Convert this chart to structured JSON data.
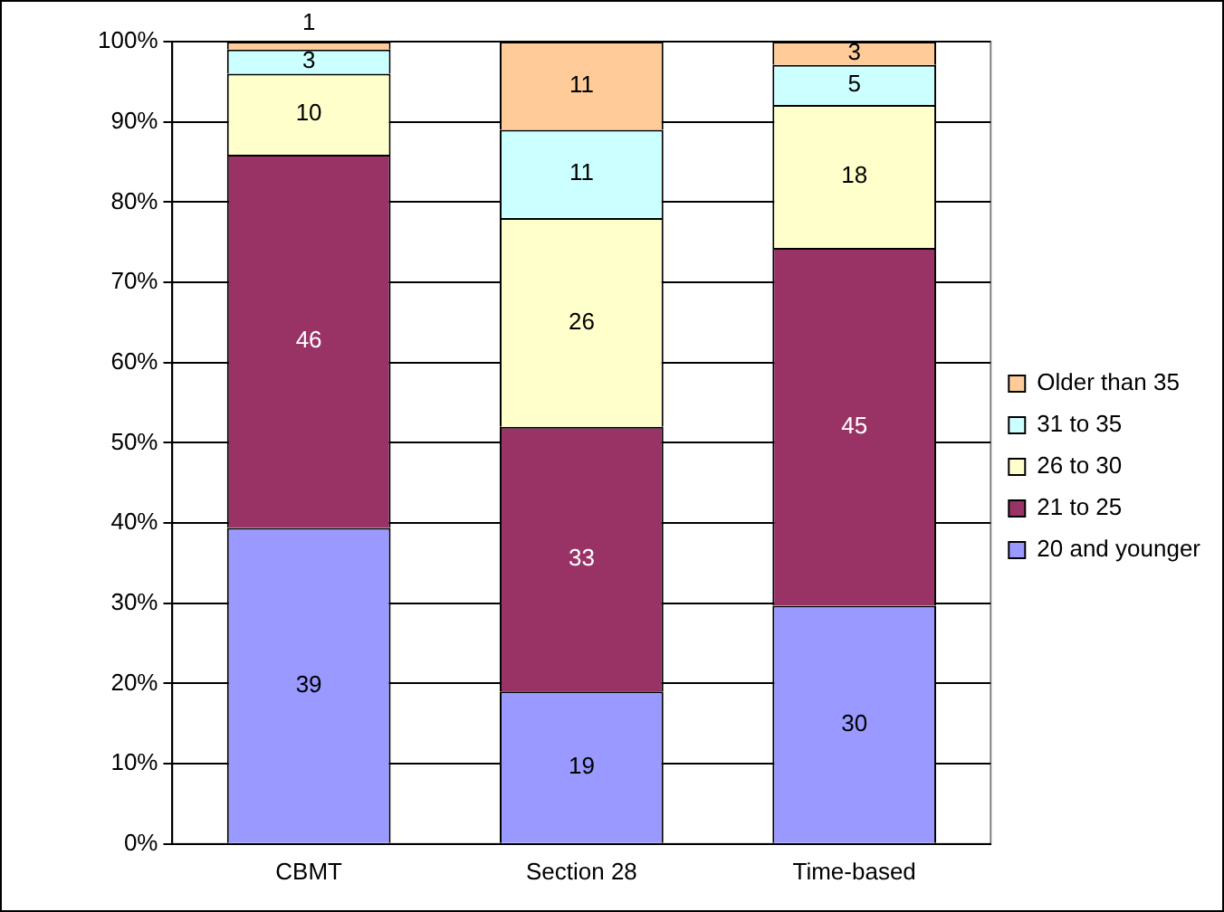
{
  "chart_data": {
    "type": "bar",
    "stacked": true,
    "categories": [
      "CBMT",
      "Section 28",
      "Time-based"
    ],
    "series": [
      {
        "name": "20 and younger",
        "color": "#9999ff",
        "values": [
          39.4,
          19,
          29.7
        ],
        "value_labels": [
          "39",
          "19",
          "30"
        ]
      },
      {
        "name": "21 to 25",
        "color": "#993366",
        "values": [
          46.5,
          33,
          44.6
        ],
        "value_labels": [
          "46",
          "33",
          "45"
        ]
      },
      {
        "name": "26 to 30",
        "color": "#ffffcc",
        "values": [
          10.1,
          26,
          17.8
        ],
        "value_labels": [
          "10",
          "26",
          "18"
        ]
      },
      {
        "name": "31 to 35",
        "color": "#ccffff",
        "values": [
          3,
          11,
          5
        ],
        "value_labels": [
          "3",
          "11",
          "5"
        ]
      },
      {
        "name": "Older than 35",
        "color": "#ffcc99",
        "values": [
          1,
          11,
          2.9
        ],
        "value_labels": [
          "1",
          "11",
          "3"
        ]
      }
    ],
    "ylim": [
      0,
      100
    ],
    "yticks": [
      {
        "value": 0,
        "label": "0%"
      },
      {
        "value": 10,
        "label": "10%"
      },
      {
        "value": 20,
        "label": "20%"
      },
      {
        "value": 30,
        "label": "30%"
      },
      {
        "value": 40,
        "label": "40%"
      },
      {
        "value": 50,
        "label": "50%"
      },
      {
        "value": 60,
        "label": "60%"
      },
      {
        "value": 70,
        "label": "70%"
      },
      {
        "value": 80,
        "label": "80%"
      },
      {
        "value": 90,
        "label": "90%"
      },
      {
        "value": 100,
        "label": "100%"
      }
    ],
    "grid": "y",
    "legend": "right"
  }
}
